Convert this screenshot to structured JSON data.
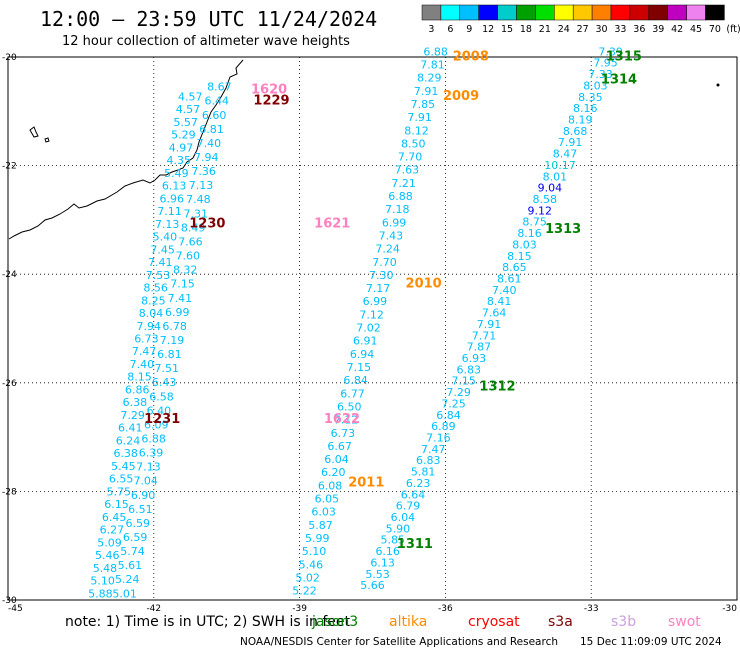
{
  "header": {
    "title": "12:00 – 23:59 UTC 11/24/2024",
    "subtitle": "12 hour collection of altimeter wave heights"
  },
  "colorbar": {
    "labels": [
      "3",
      "6",
      "9",
      "12",
      "15",
      "18",
      "21",
      "24",
      "27",
      "30",
      "33",
      "36",
      "39",
      "42",
      "45",
      "70"
    ],
    "unit": "(ft)",
    "colors": [
      "#808080",
      "#00ffff",
      "#00bfff",
      "#0000ff",
      "#00cccc",
      "#00a000",
      "#00e000",
      "#ffff00",
      "#ffc800",
      "#ff8000",
      "#ff0000",
      "#cc0000",
      "#800000",
      "#c000c0",
      "#ee82ee",
      "#000000"
    ]
  },
  "axes": {
    "lat_labels": [
      "-20",
      "-22",
      "-24",
      "-26",
      "-28",
      "-30"
    ],
    "lon_labels": [
      "-45",
      "-42",
      "-39",
      "-36",
      "-33",
      "-30"
    ],
    "lat_range": [
      -30,
      -20
    ],
    "lon_range": [
      -45,
      -30
    ]
  },
  "legend": {
    "note": "note:  1) Time is in UTC;  2) SWH is in feet",
    "satellites": [
      {
        "name": "jason3",
        "color": "#008000"
      },
      {
        "name": "altika",
        "color": "#ff8c00"
      },
      {
        "name": "cryosat",
        "color": "#ff0000"
      },
      {
        "name": "s3a",
        "color": "#800000"
      },
      {
        "name": "s3b",
        "color": "#c8a0e0"
      },
      {
        "name": "swot",
        "color": "#ff80c0"
      }
    ]
  },
  "footer": {
    "credit": "NOAA/NESDIS Center for Satellite Applications and Research",
    "timestamp": "15 Dec 11:09:09 UTC 2024"
  },
  "pass_labels": [
    {
      "text": "2008",
      "lon": -35.85,
      "lat": -19.97,
      "color": "#ff8c00"
    },
    {
      "text": "2009",
      "lon": -36.05,
      "lat": -20.7,
      "color": "#ff8c00"
    },
    {
      "text": "2010",
      "lon": -36.82,
      "lat": -24.15,
      "color": "#ff8c00"
    },
    {
      "text": "2011",
      "lon": -38.0,
      "lat": -27.82,
      "color": "#ff8c00"
    },
    {
      "text": "1315",
      "lon": -32.7,
      "lat": -19.97,
      "color": "#008000"
    },
    {
      "text": "1314",
      "lon": -32.8,
      "lat": -20.4,
      "color": "#008000"
    },
    {
      "text": "1313",
      "lon": -33.95,
      "lat": -23.15,
      "color": "#008000"
    },
    {
      "text": "1312",
      "lon": -35.3,
      "lat": -26.05,
      "color": "#008000"
    },
    {
      "text": "1311",
      "lon": -37.0,
      "lat": -28.95,
      "color": "#008000"
    },
    {
      "text": "1620",
      "lon": -40.0,
      "lat": -20.58,
      "color": "#ff80c0"
    },
    {
      "text": "1621",
      "lon": -38.7,
      "lat": -23.05,
      "color": "#ff80c0"
    },
    {
      "text": "1622",
      "lon": -38.5,
      "lat": -26.65,
      "color": "#ff80c0"
    },
    {
      "text": "1229",
      "lon": -39.95,
      "lat": -20.78,
      "color": "#800000"
    },
    {
      "text": "1230",
      "lon": -41.27,
      "lat": -23.05,
      "color": "#800000"
    },
    {
      "text": "1231",
      "lon": -42.2,
      "lat": -26.65,
      "color": "#800000"
    }
  ],
  "swh_tracks": [
    {
      "name": "s3a-west",
      "color": "#00bfff",
      "lon_top": -40.65,
      "lat_top": -20.62,
      "lon_bottom": -42.6,
      "lat_bottom": -29.95,
      "values": [
        "8.67",
        "6.44",
        "6.60",
        "6.81",
        "7.40",
        "7.94",
        "7.36",
        "7.13",
        "7.48",
        "7.31",
        "8.49",
        "7.66",
        "7.60",
        "8.32",
        "7.15",
        "7.41",
        "6.99",
        "6.78",
        "7.19",
        "6.81",
        "7.51",
        "6.43",
        "6.58",
        "6.40",
        "6.09",
        "6.88",
        "6.39",
        "7.13",
        "7.04",
        "6.90",
        "6.51",
        "6.59",
        "6.59",
        "5.74",
        "5.61",
        "5.24",
        "5.01"
      ]
    },
    {
      "name": "s3a-west2",
      "color": "#00bfff",
      "lon_top": -41.25,
      "lat_top": -20.8,
      "lon_bottom": -43.1,
      "lat_bottom": -29.95,
      "values": [
        "4.57",
        "4.57",
        "5.57",
        "5.29",
        "4.97",
        "4.35",
        "5.49",
        "6.13",
        "6.96",
        "7.11",
        "7.13",
        "5.40",
        "7.45",
        "7.41",
        "7.53",
        "8.56",
        "8.25",
        "8.04",
        "7.94",
        "6.73",
        "7.47",
        "7.40",
        "8.15",
        "6.86",
        "6.38",
        "7.29",
        "6.41",
        "6.24",
        "6.38",
        "5.45",
        "6.55",
        "5.75",
        "6.15",
        "6.45",
        "6.27",
        "5.09",
        "5.46",
        "5.48",
        "5.10",
        "5.88"
      ]
    },
    {
      "name": "altika-east",
      "color": "#00bfff",
      "lon_top": -36.2,
      "lat_top": -19.97,
      "lon_bottom": -38.9,
      "lat_bottom": -29.9,
      "values": [
        "6.88",
        "7.81",
        "8.29",
        "7.91",
        "7.85",
        "7.91",
        "8.12",
        "8.50",
        "7.70",
        "7.63",
        "7.21",
        "6.88",
        "7.18",
        "6.99",
        "7.43",
        "7.24",
        "7.70",
        "7.30",
        "7.17",
        "6.99",
        "7.12",
        "7.02",
        "6.91",
        "6.94",
        "7.15",
        "6.84",
        "6.77",
        "6.50",
        "7.12",
        "6.73",
        "6.67",
        "6.04",
        "6.20",
        "6.08",
        "6.05",
        "6.03",
        "5.87",
        "5.99",
        "5.10",
        "5.46",
        "5.02",
        "5.22"
      ]
    },
    {
      "name": "jason-east",
      "color": "#00bfff",
      "lon_top": -32.6,
      "lat_top": -19.97,
      "lon_bottom": -37.5,
      "lat_bottom": -29.8,
      "values": [
        "7.39",
        "7.95",
        "7.33",
        "8.03",
        "8.35",
        "8.16",
        "8.19",
        "8.68",
        "7.91",
        "8.47",
        "10.17",
        "8.01",
        "9.04",
        "8.58",
        "9.12",
        "8.75",
        "8.16",
        "8.03",
        "8.15",
        "8.65",
        "8.61",
        "7.40",
        "8.41",
        "7.64",
        "7.91",
        "7.71",
        "7.87",
        "6.93",
        "6.83",
        "7.15",
        "7.29",
        "7.25",
        "6.84",
        "6.89",
        "7.16",
        "7.47",
        "6.83",
        "5.81",
        "6.23",
        "6.64",
        "6.79",
        "6.04",
        "5.90",
        "5.85",
        "6.16",
        "6.13",
        "5.53",
        "5.66"
      ]
    }
  ],
  "chart_data": {
    "type": "scatter",
    "title": "12:00 – 23:59 UTC 11/24/2024",
    "subtitle": "12 hour collection of altimeter wave heights",
    "xlim": [
      -45,
      -30
    ],
    "ylim": [
      -30,
      -20
    ]
  }
}
